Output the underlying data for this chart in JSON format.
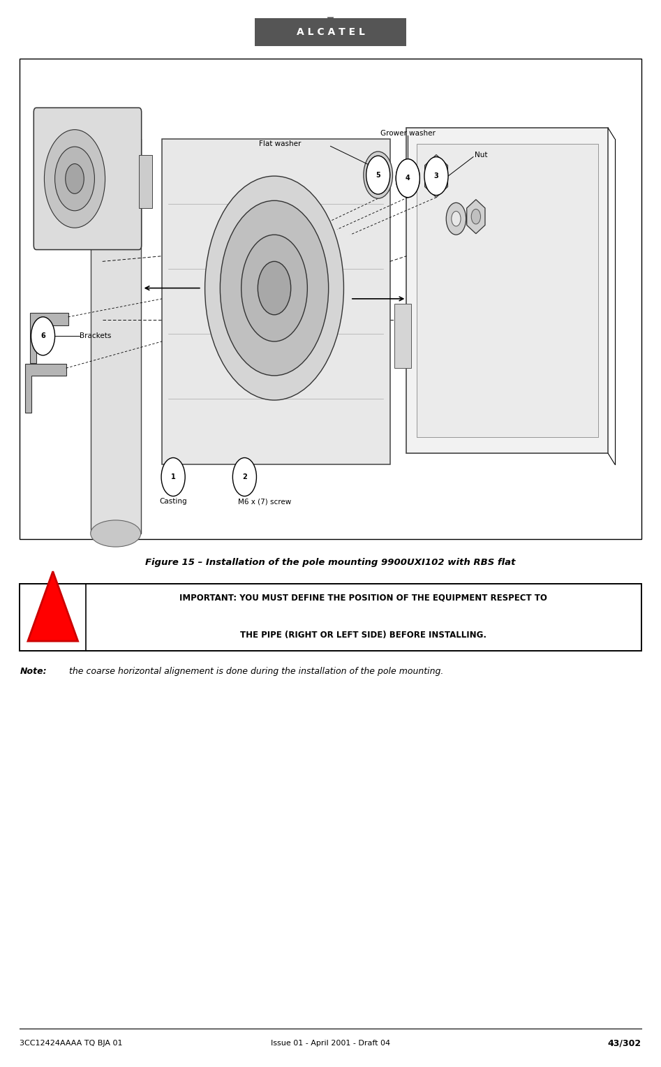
{
  "bg_color": "#ffffff",
  "page_width": 9.47,
  "page_height": 15.28,
  "header_logo_text": "A L C A T E L",
  "header_logo_bg": "#555555",
  "header_logo_text_color": "#ffffff",
  "header_arrow_color": "#555555",
  "figure_caption": "Figure 15 – Installation of the pole mounting 9900UXI102 with RBS flat",
  "important_box_border": "#000000",
  "important_text_line1": "IMPORTANT: YOU MUST DEFINE THE POSITION OF THE EQUIPMENT RESPECT TO",
  "important_text_line2": "THE PIPE (RIGHT OR LEFT SIDE) BEFORE INSTALLING.",
  "triangle_fill": "#ff0000",
  "triangle_stroke": "#cc0000",
  "note_bold": "Note:",
  "note_rest": " the coarse horizontal alignement is done during the installation of the pole mounting.",
  "footer_left": "3CC12424AAAA TQ BJA 01",
  "footer_center": "Issue 01 - April 2001 - Draft 04",
  "footer_right": "43/302",
  "footer_line_color": "#000000"
}
